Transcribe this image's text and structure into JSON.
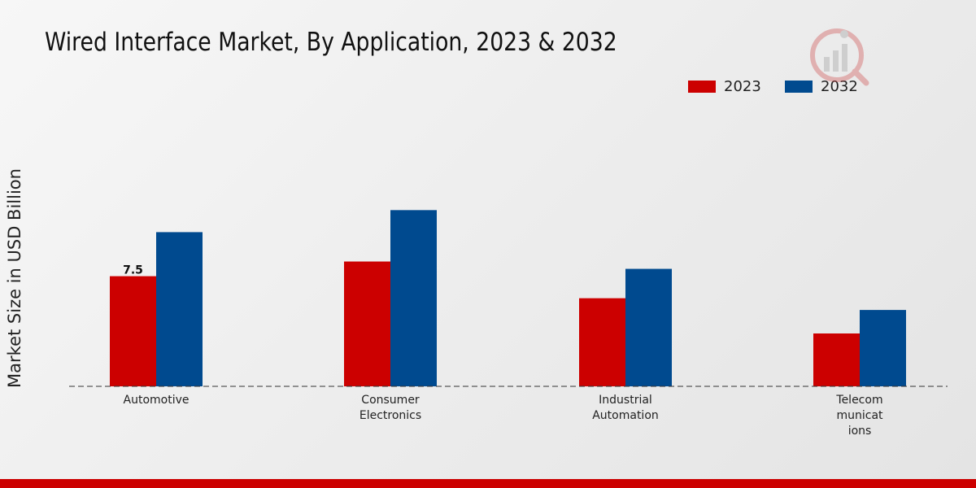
{
  "chart_data": {
    "type": "bar",
    "title": "Wired Interface Market, By Application, 2023 & 2032",
    "xlabel": "",
    "ylabel": "Market Size in USD Billion",
    "categories": [
      "Automotive",
      "Consumer\nElectronics",
      "Industrial\nAutomation",
      "Telecom\nmunicat\nions"
    ],
    "series": [
      {
        "name": "2023",
        "color": "#cc0000",
        "values": [
          7.5,
          8.5,
          6.0,
          3.6
        ]
      },
      {
        "name": "2032",
        "color": "#004a8f",
        "values": [
          10.5,
          12.0,
          8.0,
          5.2
        ]
      }
    ],
    "data_labels": [
      {
        "series": 0,
        "index": 0,
        "text": "7.5"
      }
    ],
    "ylim": [
      0,
      18
    ],
    "legend_position": "top-right",
    "grid": false
  },
  "colors": {
    "accent_red": "#cc0000",
    "accent_blue": "#004a8f"
  }
}
